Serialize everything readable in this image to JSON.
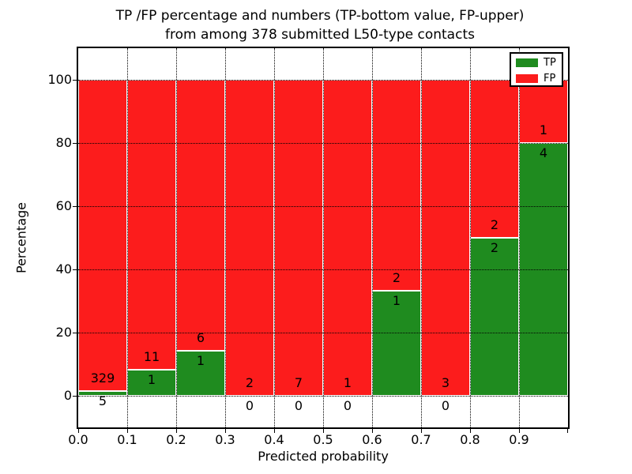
{
  "figure": {
    "title_line1": "TP /FP percentage and numbers (TP-bottom value, FP-upper)",
    "title_line2": "from among 378 submitted L50-type contacts",
    "xlabel": "Predicted probability",
    "ylabel": "Percentage"
  },
  "chart_data": {
    "type": "bar",
    "stacked": true,
    "normalized": "each bar totals 100%",
    "title": "TP /FP percentage and numbers (TP-bottom value, FP-upper) from among 378 submitted L50-type contacts",
    "xlabel": "Predicted probability",
    "ylabel": "Percentage",
    "xlim": [
      0.0,
      1.0
    ],
    "ylim": [
      -10,
      110
    ],
    "xticks": [
      "0.0",
      "0.1",
      "0.2",
      "0.3",
      "0.4",
      "0.5",
      "0.6",
      "0.7",
      "0.8",
      "0.9"
    ],
    "yticks": [
      0,
      20,
      40,
      60,
      80,
      100
    ],
    "grid": "dotted black, both axes",
    "total_submitted": 378,
    "series": [
      {
        "name": "TP",
        "color": "#1f8b1f",
        "position": "bottom"
      },
      {
        "name": "FP",
        "color": "#fc1c1c",
        "position": "top"
      }
    ],
    "legend": {
      "position": "upper right",
      "entries": [
        "TP",
        "FP"
      ]
    },
    "bins": [
      {
        "range": [
          0.0,
          0.1
        ],
        "tp": 5,
        "fp": 329,
        "tp_pct": 1.5,
        "fp_pct": 98.5
      },
      {
        "range": [
          0.1,
          0.2
        ],
        "tp": 1,
        "fp": 11,
        "tp_pct": 8.33,
        "fp_pct": 91.67
      },
      {
        "range": [
          0.2,
          0.3
        ],
        "tp": 1,
        "fp": 6,
        "tp_pct": 14.29,
        "fp_pct": 85.71
      },
      {
        "range": [
          0.3,
          0.4
        ],
        "tp": 0,
        "fp": 2,
        "tp_pct": 0,
        "fp_pct": 100
      },
      {
        "range": [
          0.4,
          0.5
        ],
        "tp": 0,
        "fp": 7,
        "tp_pct": 0,
        "fp_pct": 100
      },
      {
        "range": [
          0.5,
          0.6
        ],
        "tp": 0,
        "fp": 1,
        "tp_pct": 0,
        "fp_pct": 100
      },
      {
        "range": [
          0.6,
          0.7
        ],
        "tp": 1,
        "fp": 2,
        "tp_pct": 33.33,
        "fp_pct": 66.67
      },
      {
        "range": [
          0.7,
          0.8
        ],
        "tp": 0,
        "fp": 3,
        "tp_pct": 0,
        "fp_pct": 100
      },
      {
        "range": [
          0.8,
          0.9
        ],
        "tp": 2,
        "fp": 2,
        "tp_pct": 50,
        "fp_pct": 50
      },
      {
        "range": [
          0.9,
          1.0
        ],
        "tp": 4,
        "fp": 1,
        "tp_pct": 80,
        "fp_pct": 20
      }
    ]
  }
}
